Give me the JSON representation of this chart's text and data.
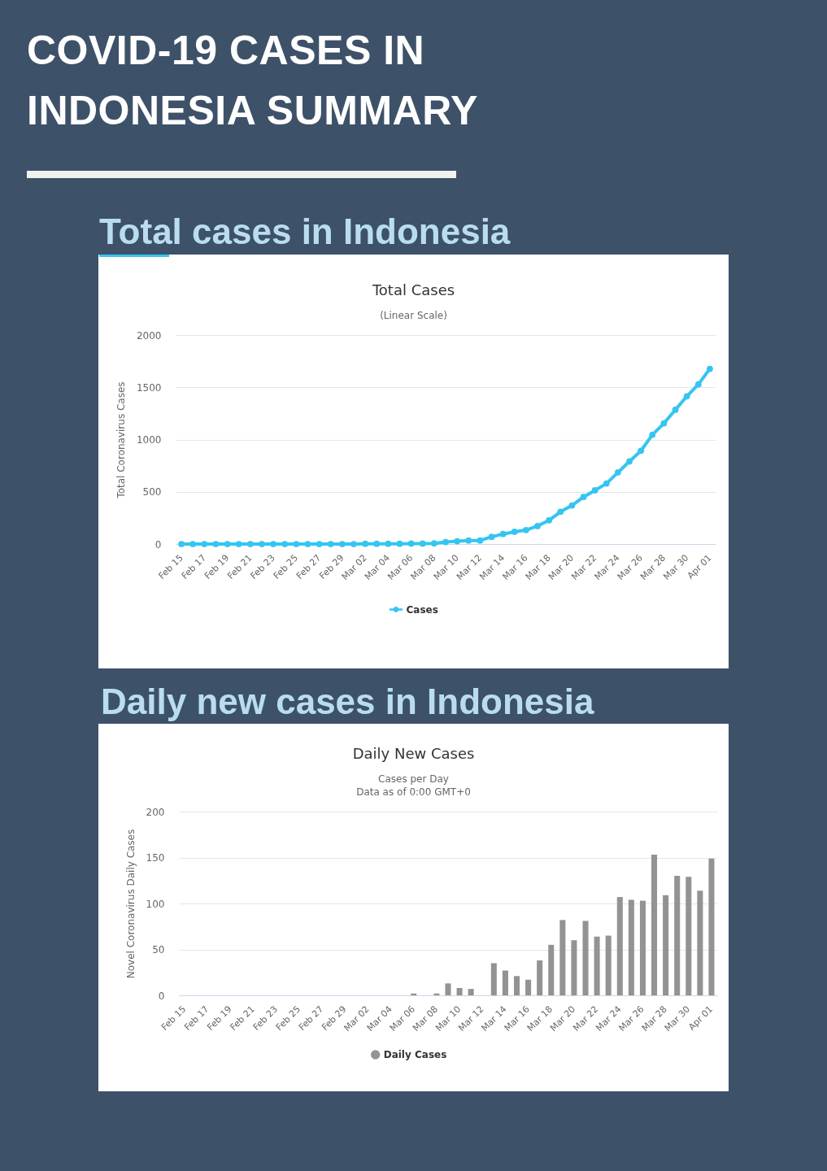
{
  "chart_data": [
    {
      "type": "line",
      "title": "Total Cases",
      "subtitle": "(Linear Scale)",
      "ylabel": "Total Coronavirus Cases",
      "annotations": [
        "COVID-19 CASES IN INDONESIA SUMMARY",
        "Total cases in Indonesia"
      ],
      "categories": [
        "Feb 15",
        null,
        "Feb 17",
        null,
        "Feb 19",
        null,
        "Feb 21",
        null,
        "Feb 23",
        null,
        "Feb 25",
        null,
        "Feb 27",
        null,
        "Feb 29",
        null,
        "Mar 02",
        null,
        "Mar 04",
        null,
        "Mar 06",
        null,
        "Mar 08",
        null,
        "Mar 10",
        null,
        "Mar 12",
        null,
        "Mar 14",
        null,
        "Mar 16",
        null,
        "Mar 18",
        null,
        "Mar 20",
        null,
        "Mar 22",
        null,
        "Mar 24",
        null,
        "Mar 26",
        null,
        "Mar 28",
        null,
        "Mar 30",
        null,
        "Apr 01"
      ],
      "series": [
        {
          "name": "Cases",
          "color": "#35c5f0",
          "values": [
            0,
            0,
            0,
            0,
            0,
            0,
            0,
            0,
            0,
            0,
            0,
            0,
            0,
            0,
            0,
            0,
            2,
            2,
            2,
            2,
            4,
            4,
            6,
            19,
            27,
            34,
            34,
            69,
            96,
            117,
            134,
            172,
            227,
            309,
            369,
            450,
            514,
            579,
            686,
            790,
            893,
            1046,
            1155,
            1285,
            1414,
            1528,
            1677
          ]
        }
      ],
      "ylim": [
        0,
        2000
      ],
      "yticks": [
        0,
        500,
        1000,
        1500,
        2000
      ],
      "grid": "y",
      "legend": "bottom",
      "marker": "circle"
    },
    {
      "type": "bar",
      "title": "Daily New Cases",
      "subtitle": "Cases per Day\nData as of 0:00 GMT+0",
      "ylabel": "Novel Coronavirus Daily Cases",
      "annotations": [
        "Daily new cases in Indonesia"
      ],
      "categories": [
        "Feb 15",
        null,
        "Feb 17",
        null,
        "Feb 19",
        null,
        "Feb 21",
        null,
        "Feb 23",
        null,
        "Feb 25",
        null,
        "Feb 27",
        null,
        "Feb 29",
        null,
        "Mar 02",
        null,
        "Mar 04",
        null,
        "Mar 06",
        null,
        "Mar 08",
        null,
        "Mar 10",
        null,
        "Mar 12",
        null,
        "Mar 14",
        null,
        "Mar 16",
        null,
        "Mar 18",
        null,
        "Mar 20",
        null,
        "Mar 22",
        null,
        "Mar 24",
        null,
        "Mar 26",
        null,
        "Mar 28",
        null,
        "Mar 30",
        null,
        "Apr 01"
      ],
      "series": [
        {
          "name": "Daily Cases",
          "color": "#939393",
          "values": [
            0,
            0,
            0,
            0,
            0,
            0,
            0,
            0,
            0,
            0,
            0,
            0,
            0,
            0,
            0,
            0,
            0,
            0,
            0,
            0,
            2,
            0,
            2,
            13,
            8,
            7,
            0,
            35,
            27,
            21,
            17,
            38,
            55,
            82,
            60,
            81,
            64,
            65,
            107,
            104,
            103,
            153,
            109,
            130,
            129,
            114,
            149
          ]
        }
      ],
      "ylim": [
        0,
        200
      ],
      "yticks": [
        0,
        50,
        100,
        150,
        200
      ],
      "grid": "y",
      "legend": "bottom"
    }
  ]
}
